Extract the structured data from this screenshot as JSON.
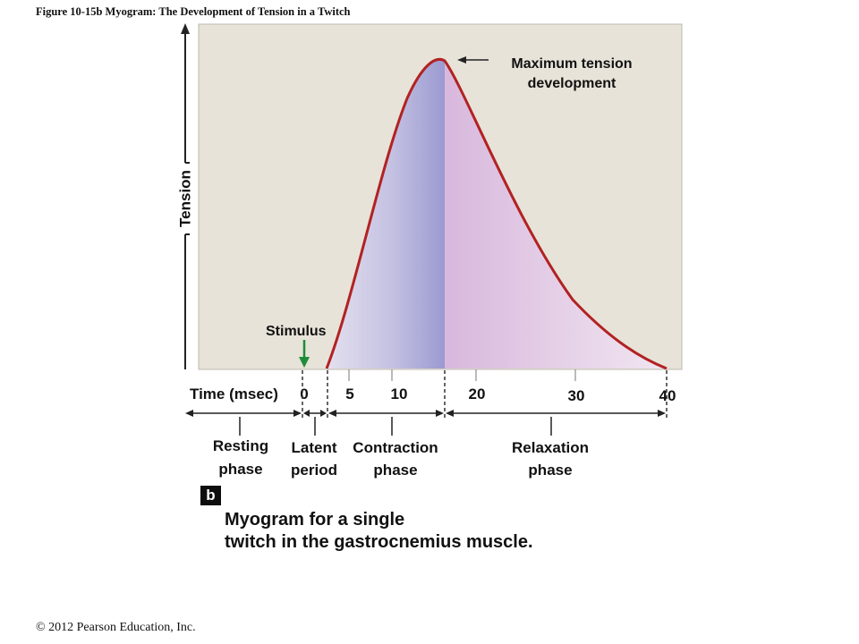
{
  "figure_title": "Figure 10-15b  Myogram: The Development of Tension in a Twitch",
  "axis": {
    "y_label": "Tension",
    "x_label": "Time (msec)",
    "x_ticks": [
      "0",
      "5",
      "10",
      "20",
      "30",
      "40"
    ]
  },
  "annotations": {
    "stimulus": "Stimulus",
    "peak_line1": "Maximum tension",
    "peak_line2": "development"
  },
  "phases": [
    {
      "line1": "Resting",
      "line2": "phase"
    },
    {
      "line1": "Latent",
      "line2": "period"
    },
    {
      "line1": "Contraction",
      "line2": "phase"
    },
    {
      "line1": "Relaxation",
      "line2": "phase"
    }
  ],
  "badge": "b",
  "caption": {
    "line1": "Myogram for a single",
    "line2": "twitch in the gastrocnemius muscle."
  },
  "copyright": "© 2012 Pearson Education, Inc.",
  "colors": {
    "plot_bg": "#e7e3d8",
    "curve": "#b22222",
    "contraction_fill_dark": "#9b9ad0",
    "relaxation_fill": "#dcbde0",
    "stimulus_arrow": "#1e8c3c"
  }
}
